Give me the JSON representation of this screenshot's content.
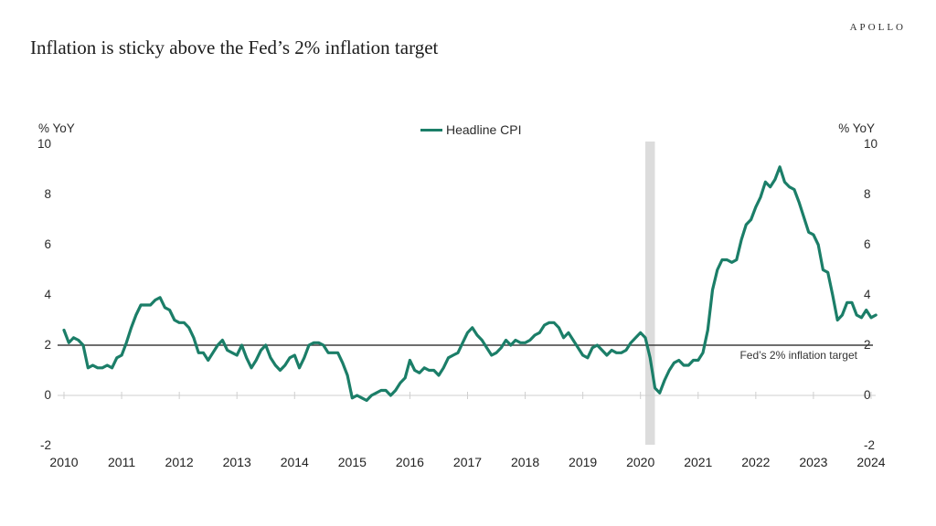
{
  "header": {
    "title": "Inflation is sticky above the Fed’s 2% inflation target",
    "brand": "APOLLO"
  },
  "colors": {
    "line": "#1b7e68",
    "recession_band": "#dcdcdc",
    "target_line": "#3f3f3f",
    "zero_axis": "#cfcfcf",
    "text": "#262626"
  },
  "chart_data": {
    "type": "line",
    "title": "Inflation is sticky above the Fed’s 2% inflation target",
    "legend": [
      {
        "label": "Headline CPI",
        "color": "#1b7e68"
      }
    ],
    "legend_position": "top-center",
    "grid": false,
    "y_axis_label_left": "% YoY",
    "y_axis_label_right": "% YoY",
    "ylim": [
      -2,
      10
    ],
    "y_ticks": [
      10,
      8,
      6,
      4,
      2,
      0,
      -2
    ],
    "x_ticks": [
      "2010",
      "2011",
      "2012",
      "2013",
      "2014",
      "2015",
      "2016",
      "2017",
      "2018",
      "2019",
      "2020",
      "2021",
      "2022",
      "2023",
      "2024"
    ],
    "target_line": {
      "value": 2,
      "label": "Fed’s 2% inflation target"
    },
    "recession_band": {
      "start_month": "2020-02",
      "end_month": "2020-04"
    },
    "series": [
      {
        "name": "Headline CPI",
        "color": "#1b7e68",
        "start": "2010-01",
        "frequency": "monthly",
        "values": [
          2.6,
          2.1,
          2.3,
          2.2,
          2.0,
          1.1,
          1.2,
          1.1,
          1.1,
          1.2,
          1.1,
          1.5,
          1.6,
          2.1,
          2.7,
          3.2,
          3.6,
          3.6,
          3.6,
          3.8,
          3.9,
          3.5,
          3.4,
          3.0,
          2.9,
          2.9,
          2.7,
          2.3,
          1.7,
          1.7,
          1.4,
          1.7,
          2.0,
          2.2,
          1.8,
          1.7,
          1.6,
          2.0,
          1.5,
          1.1,
          1.4,
          1.8,
          2.0,
          1.5,
          1.2,
          1.0,
          1.2,
          1.5,
          1.6,
          1.1,
          1.5,
          2.0,
          2.1,
          2.1,
          2.0,
          1.7,
          1.7,
          1.7,
          1.3,
          0.8,
          -0.1,
          0.0,
          -0.1,
          -0.2,
          0.0,
          0.1,
          0.2,
          0.2,
          0.0,
          0.2,
          0.5,
          0.7,
          1.4,
          1.0,
          0.9,
          1.1,
          1.0,
          1.0,
          0.8,
          1.1,
          1.5,
          1.6,
          1.7,
          2.1,
          2.5,
          2.7,
          2.4,
          2.2,
          1.9,
          1.6,
          1.7,
          1.9,
          2.2,
          2.0,
          2.2,
          2.1,
          2.1,
          2.2,
          2.4,
          2.5,
          2.8,
          2.9,
          2.9,
          2.7,
          2.3,
          2.5,
          2.2,
          1.9,
          1.6,
          1.5,
          1.9,
          2.0,
          1.8,
          1.6,
          1.8,
          1.7,
          1.7,
          1.8,
          2.1,
          2.3,
          2.5,
          2.3,
          1.5,
          0.3,
          0.1,
          0.6,
          1.0,
          1.3,
          1.4,
          1.2,
          1.2,
          1.4,
          1.4,
          1.7,
          2.6,
          4.2,
          5.0,
          5.4,
          5.4,
          5.3,
          5.4,
          6.2,
          6.8,
          7.0,
          7.5,
          7.9,
          8.5,
          8.3,
          8.6,
          9.1,
          8.5,
          8.3,
          8.2,
          7.7,
          7.1,
          6.5,
          6.4,
          6.0,
          5.0,
          4.9,
          4.0,
          3.0,
          3.2,
          3.7,
          3.7,
          3.2,
          3.1,
          3.4,
          3.1,
          3.2
        ]
      }
    ]
  }
}
